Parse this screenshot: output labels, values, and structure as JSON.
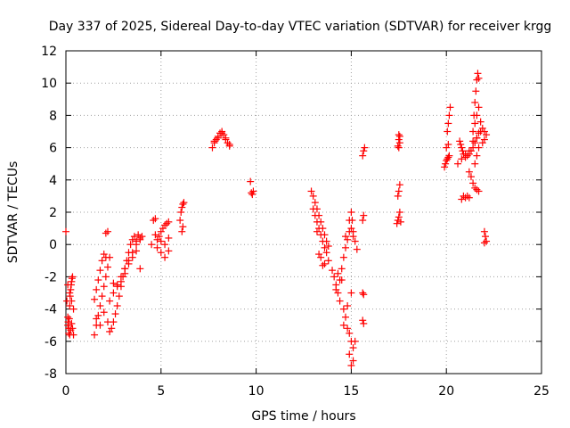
{
  "chart_data": {
    "type": "scatter",
    "title": "Day 337 of 2025, Sidereal Day-to-day VTEC variation (SDTVAR) for receiver krgg",
    "xlabel": "GPS time / hours",
    "ylabel": "SDTVAR / TECUs",
    "xlim": [
      0,
      25
    ],
    "ylim": [
      -8,
      12
    ],
    "xticks": [
      0,
      5,
      10,
      15,
      20,
      25
    ],
    "yticks": [
      -8,
      -6,
      -4,
      -2,
      0,
      2,
      4,
      6,
      8,
      10,
      12
    ],
    "grid": true,
    "marker": "+",
    "marker_color": "#ff0000",
    "series": [
      {
        "name": "SDTVAR",
        "x": [
          0.0,
          0.05,
          0.1,
          0.12,
          0.15,
          0.18,
          0.2,
          0.22,
          0.25,
          0.28,
          0.3,
          0.32,
          0.35,
          0.1,
          0.15,
          0.2,
          0.25,
          0.3,
          0.35,
          0.4,
          0.1,
          0.2,
          0.3,
          0.4,
          1.5,
          1.6,
          1.7,
          1.8,
          1.9,
          2.0,
          2.1,
          2.2,
          2.3,
          1.5,
          1.6,
          1.7,
          1.8,
          1.9,
          2.0,
          2.1,
          1.6,
          1.8,
          2.0,
          2.2,
          2.1,
          2.2,
          2.3,
          2.4,
          2.5,
          2.6,
          2.7,
          2.8,
          2.9,
          3.0,
          3.1,
          3.2,
          3.3,
          3.4,
          3.5,
          3.6,
          3.7,
          3.8,
          3.9,
          2.5,
          2.7,
          2.9,
          3.1,
          3.3,
          3.5,
          3.7,
          2.3,
          2.5,
          2.7,
          2.9,
          3.1,
          3.3,
          3.5,
          3.7,
          3.9,
          4.0,
          3.9,
          4.6,
          4.7,
          4.8,
          4.9,
          5.0,
          5.1,
          5.2,
          5.3,
          5.4,
          4.8,
          5.0,
          5.2,
          5.4,
          5.0,
          5.2,
          5.4,
          4.5,
          4.7,
          6.0,
          6.05,
          6.1,
          6.15,
          6.2,
          6.1,
          6.15,
          7.7,
          7.8,
          7.9,
          8.0,
          8.1,
          8.2,
          8.3,
          8.4,
          8.5,
          8.6,
          7.8,
          8.0,
          8.2,
          8.4,
          8.6,
          9.7,
          9.75,
          9.8,
          9.85,
          12.9,
          13.0,
          13.1,
          13.2,
          13.3,
          13.4,
          13.5,
          13.6,
          13.7,
          13.8,
          13.0,
          13.1,
          13.2,
          13.3,
          13.4,
          13.5,
          13.6,
          13.7,
          13.2,
          13.4,
          13.6,
          13.8,
          13.3,
          13.5,
          14.0,
          14.1,
          14.2,
          14.3,
          14.4,
          14.5,
          14.6,
          14.7,
          14.8,
          14.9,
          15.0,
          15.1,
          14.2,
          14.4,
          14.6,
          14.8,
          15.0,
          14.9,
          15.0,
          15.1,
          15.2,
          14.6,
          14.7,
          14.8,
          14.9,
          15.0,
          15.1,
          14.3,
          14.5,
          14.7,
          14.9,
          15.0,
          15.05,
          15.1,
          15.2,
          15.3,
          15.6,
          15.65,
          15.7,
          15.6,
          15.65,
          15.6,
          15.65,
          15.6,
          15.65,
          17.4,
          17.45,
          17.5,
          17.55,
          17.6,
          17.45,
          17.5,
          17.55,
          17.5,
          17.55,
          17.5,
          17.55,
          17.45,
          17.5,
          19.9,
          19.95,
          20.0,
          20.05,
          20.1,
          20.15,
          20.0,
          20.1,
          20.05,
          20.1,
          20.15,
          20.2,
          20.7,
          20.75,
          20.8,
          20.85,
          20.9,
          21.0,
          21.1,
          21.2,
          21.3,
          21.4,
          21.5,
          21.6,
          21.7,
          21.8,
          20.6,
          20.8,
          21.0,
          21.2,
          21.4,
          21.6,
          21.2,
          21.3,
          21.4,
          21.5,
          21.6,
          21.7,
          21.45,
          21.5,
          21.55,
          21.6,
          21.65,
          21.7,
          21.4,
          21.5,
          21.6,
          21.7,
          21.8,
          21.9,
          22.0,
          22.1,
          21.5,
          21.6,
          21.7,
          21.9,
          22.0,
          20.8,
          20.9,
          21.0,
          21.1,
          21.2,
          22.0,
          22.05,
          22.1,
          22.0
        ],
        "y": [
          0.8,
          -3.5,
          -4.5,
          -4.8,
          -5.2,
          -4.6,
          -3.8,
          -3.2,
          -2.8,
          -2.5,
          -2.3,
          -2.1,
          -2.0,
          -5.0,
          -5.5,
          -5.6,
          -5.3,
          -4.9,
          -5.2,
          -5.6,
          -2.5,
          -3.0,
          -3.5,
          -4.0,
          -5.6,
          -5.0,
          -4.4,
          -3.8,
          -3.2,
          -2.6,
          -2.0,
          -1.4,
          -0.8,
          -3.4,
          -2.8,
          -2.2,
          -1.6,
          -1.0,
          -0.6,
          -0.8,
          -4.6,
          -5.0,
          -4.2,
          -4.8,
          0.7,
          0.8,
          -5.4,
          -5.2,
          -4.8,
          -4.3,
          -3.8,
          -3.2,
          -2.6,
          -2.0,
          -1.5,
          -1.0,
          -0.5,
          0.0,
          0.3,
          0.5,
          0.2,
          0.6,
          0.4,
          -2.4,
          -2.6,
          -2.3,
          -1.8,
          -1.2,
          -0.8,
          -0.4,
          -3.5,
          -3.0,
          -2.5,
          -2.0,
          -1.5,
          -1.0,
          -0.5,
          0.0,
          0.3,
          0.5,
          -1.5,
          1.5,
          1.6,
          0.3,
          0.5,
          0.8,
          1.0,
          1.2,
          1.3,
          1.4,
          -0.2,
          -0.5,
          -0.8,
          -0.4,
          0.2,
          0.0,
          0.4,
          0.0,
          0.6,
          1.5,
          2.0,
          2.3,
          2.5,
          2.6,
          0.8,
          1.1,
          6.0,
          6.3,
          6.5,
          6.6,
          6.9,
          7.0,
          6.8,
          6.5,
          6.3,
          6.2,
          6.4,
          6.7,
          6.9,
          6.6,
          6.1,
          3.9,
          3.2,
          3.1,
          3.3,
          3.3,
          3.0,
          2.6,
          2.2,
          1.8,
          1.4,
          1.0,
          0.6,
          0.2,
          -0.1,
          2.2,
          1.8,
          1.4,
          1.0,
          0.6,
          0.2,
          -0.2,
          -0.5,
          0.8,
          -0.8,
          -1.2,
          -1.0,
          -0.6,
          -1.3,
          -1.6,
          -2.0,
          -2.5,
          -3.0,
          -2.2,
          -1.5,
          -0.8,
          -0.2,
          0.3,
          0.8,
          1.0,
          0.5,
          -2.8,
          -3.5,
          -4.0,
          -3.8,
          -3.0,
          -5.5,
          -6.0,
          -6.4,
          -6.0,
          -5.0,
          -4.5,
          -5.2,
          -6.8,
          -7.5,
          -7.2,
          -1.8,
          -2.2,
          0.5,
          1.5,
          2.0,
          1.5,
          0.8,
          0.2,
          -0.3,
          5.5,
          5.8,
          6.0,
          -3.0,
          -3.1,
          -4.7,
          -4.9,
          1.5,
          1.8,
          1.3,
          1.5,
          1.7,
          2.0,
          1.4,
          3.0,
          3.3,
          3.7,
          6.0,
          6.3,
          6.5,
          6.7,
          6.1,
          6.8,
          4.8,
          5.0,
          5.2,
          5.3,
          5.4,
          5.5,
          6.0,
          6.2,
          7.0,
          7.5,
          8.0,
          8.5,
          6.4,
          6.2,
          6.0,
          5.8,
          5.6,
          5.4,
          5.5,
          5.6,
          5.8,
          6.0,
          6.3,
          6.6,
          6.9,
          7.0,
          5.0,
          5.3,
          5.6,
          5.8,
          6.4,
          6.6,
          4.5,
          4.2,
          3.8,
          3.5,
          3.4,
          3.3,
          8.0,
          8.8,
          9.5,
          10.2,
          10.6,
          10.3,
          7.0,
          7.5,
          8.0,
          8.5,
          7.6,
          7.2,
          7.0,
          6.8,
          5.0,
          5.5,
          6.0,
          6.3,
          6.5,
          2.8,
          3.0,
          2.9,
          3.0,
          2.9,
          0.8,
          0.5,
          0.2,
          0.1
        ]
      }
    ]
  }
}
